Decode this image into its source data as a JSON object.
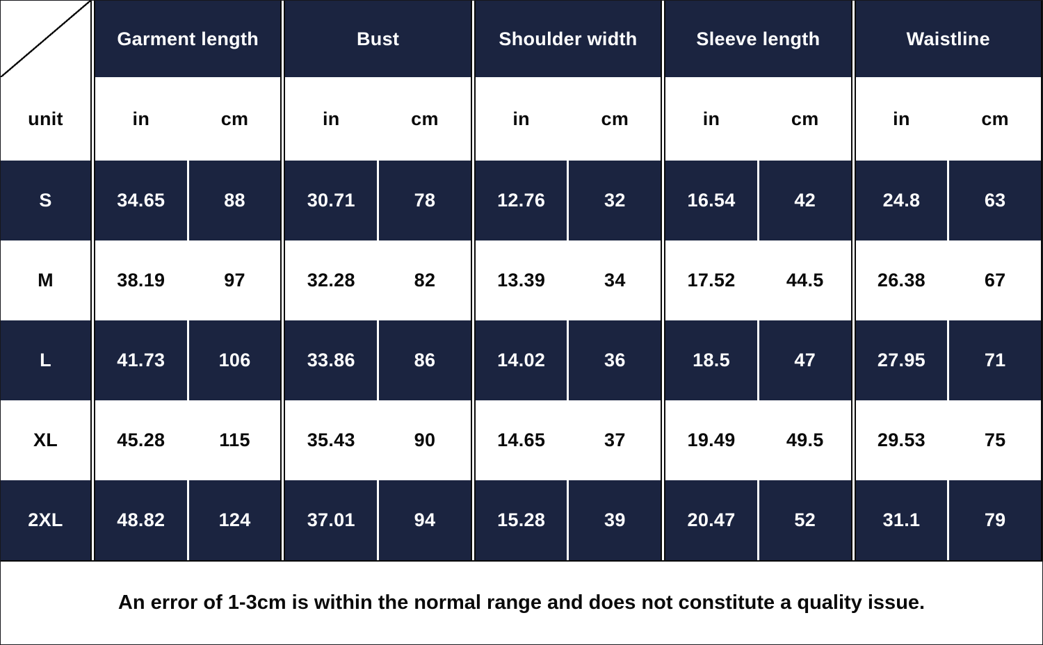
{
  "colors": {
    "navy": "#1b2440"
  },
  "chart_data": {
    "type": "table",
    "column_groups": [
      "Garment length",
      "Bust",
      "Shoulder width",
      "Sleeve length",
      "Waistline"
    ],
    "unit_row_label": "unit",
    "unit_cells": [
      "in",
      "cm",
      "in",
      "cm",
      "in",
      "cm",
      "in",
      "cm",
      "in",
      "cm"
    ],
    "rows": [
      {
        "label": "S",
        "cells": [
          "34.65",
          "88",
          "30.71",
          "78",
          "12.76",
          "32",
          "16.54",
          "42",
          "24.8",
          "63"
        ]
      },
      {
        "label": "M",
        "cells": [
          "38.19",
          "97",
          "32.28",
          "82",
          "13.39",
          "34",
          "17.52",
          "44.5",
          "26.38",
          "67"
        ]
      },
      {
        "label": "L",
        "cells": [
          "41.73",
          "106",
          "33.86",
          "86",
          "14.02",
          "36",
          "18.5",
          "47",
          "27.95",
          "71"
        ]
      },
      {
        "label": "XL",
        "cells": [
          "45.28",
          "115",
          "35.43",
          "90",
          "14.65",
          "37",
          "19.49",
          "49.5",
          "29.53",
          "75"
        ]
      },
      {
        "label": "2XL",
        "cells": [
          "48.82",
          "124",
          "37.01",
          "94",
          "15.28",
          "39",
          "20.47",
          "52",
          "31.1",
          "79"
        ]
      }
    ],
    "footer_note": "An error of 1-3cm is within the normal range and does not constitute a quality issue."
  }
}
